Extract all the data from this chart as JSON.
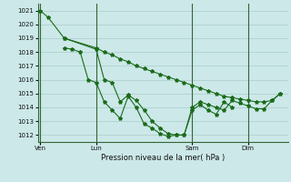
{
  "bg_color": "#cce8e8",
  "grid_color": "#aacccc",
  "line_color": "#1a6b1a",
  "marker_color": "#1a6b1a",
  "title": "Pression niveau de la mer( hPa )",
  "ylim": [
    1011.5,
    1021.5
  ],
  "yticks": [
    1012,
    1013,
    1014,
    1015,
    1016,
    1017,
    1018,
    1019,
    1020,
    1021
  ],
  "xtick_labels": [
    "Ven",
    "Lun",
    "Sam",
    "Dim"
  ],
  "xtick_positions": [
    0,
    7,
    19,
    26
  ],
  "vline_positions": [
    0,
    7,
    19,
    26
  ],
  "xlim": [
    -0.3,
    31
  ],
  "series1_x": [
    0,
    1,
    3,
    7,
    8,
    9,
    10,
    11,
    12,
    13,
    14,
    15,
    16,
    17,
    18,
    19,
    20,
    21,
    22,
    23,
    24,
    25,
    26,
    27,
    28,
    29,
    30
  ],
  "series1_y": [
    1021.0,
    1020.5,
    1019.0,
    1018.3,
    1018.0,
    1017.8,
    1017.5,
    1017.3,
    1017.0,
    1016.8,
    1016.6,
    1016.4,
    1016.2,
    1016.0,
    1015.8,
    1015.6,
    1015.4,
    1015.2,
    1015.0,
    1014.8,
    1014.7,
    1014.6,
    1014.5,
    1014.4,
    1014.4,
    1014.5,
    1015.0
  ],
  "series2_x": [
    3,
    7,
    8,
    9,
    10,
    11,
    12,
    13,
    14,
    15,
    16,
    17,
    18,
    19,
    20,
    21,
    22,
    23,
    24,
    25,
    26,
    27,
    28,
    29,
    30
  ],
  "series2_y": [
    1019.0,
    1018.2,
    1016.0,
    1015.8,
    1014.4,
    1014.9,
    1014.5,
    1013.8,
    1013.0,
    1012.5,
    1012.1,
    1012.0,
    1012.0,
    1014.0,
    1014.4,
    1014.2,
    1014.0,
    1013.8,
    1014.5,
    1014.3,
    1014.1,
    1013.9,
    1013.9,
    1014.5,
    1015.0
  ],
  "series3_x": [
    3,
    4,
    5,
    6,
    7,
    8,
    9,
    10,
    11,
    12,
    13,
    14,
    15,
    16,
    17,
    18,
    19,
    20,
    21,
    22,
    23,
    24
  ],
  "series3_y": [
    1018.3,
    1018.2,
    1018.0,
    1016.0,
    1015.8,
    1014.4,
    1013.8,
    1013.2,
    1014.8,
    1014.0,
    1012.8,
    1012.5,
    1012.1,
    1011.9,
    1012.0,
    1012.0,
    1013.8,
    1014.2,
    1013.8,
    1013.5,
    1014.4,
    1014.0
  ]
}
